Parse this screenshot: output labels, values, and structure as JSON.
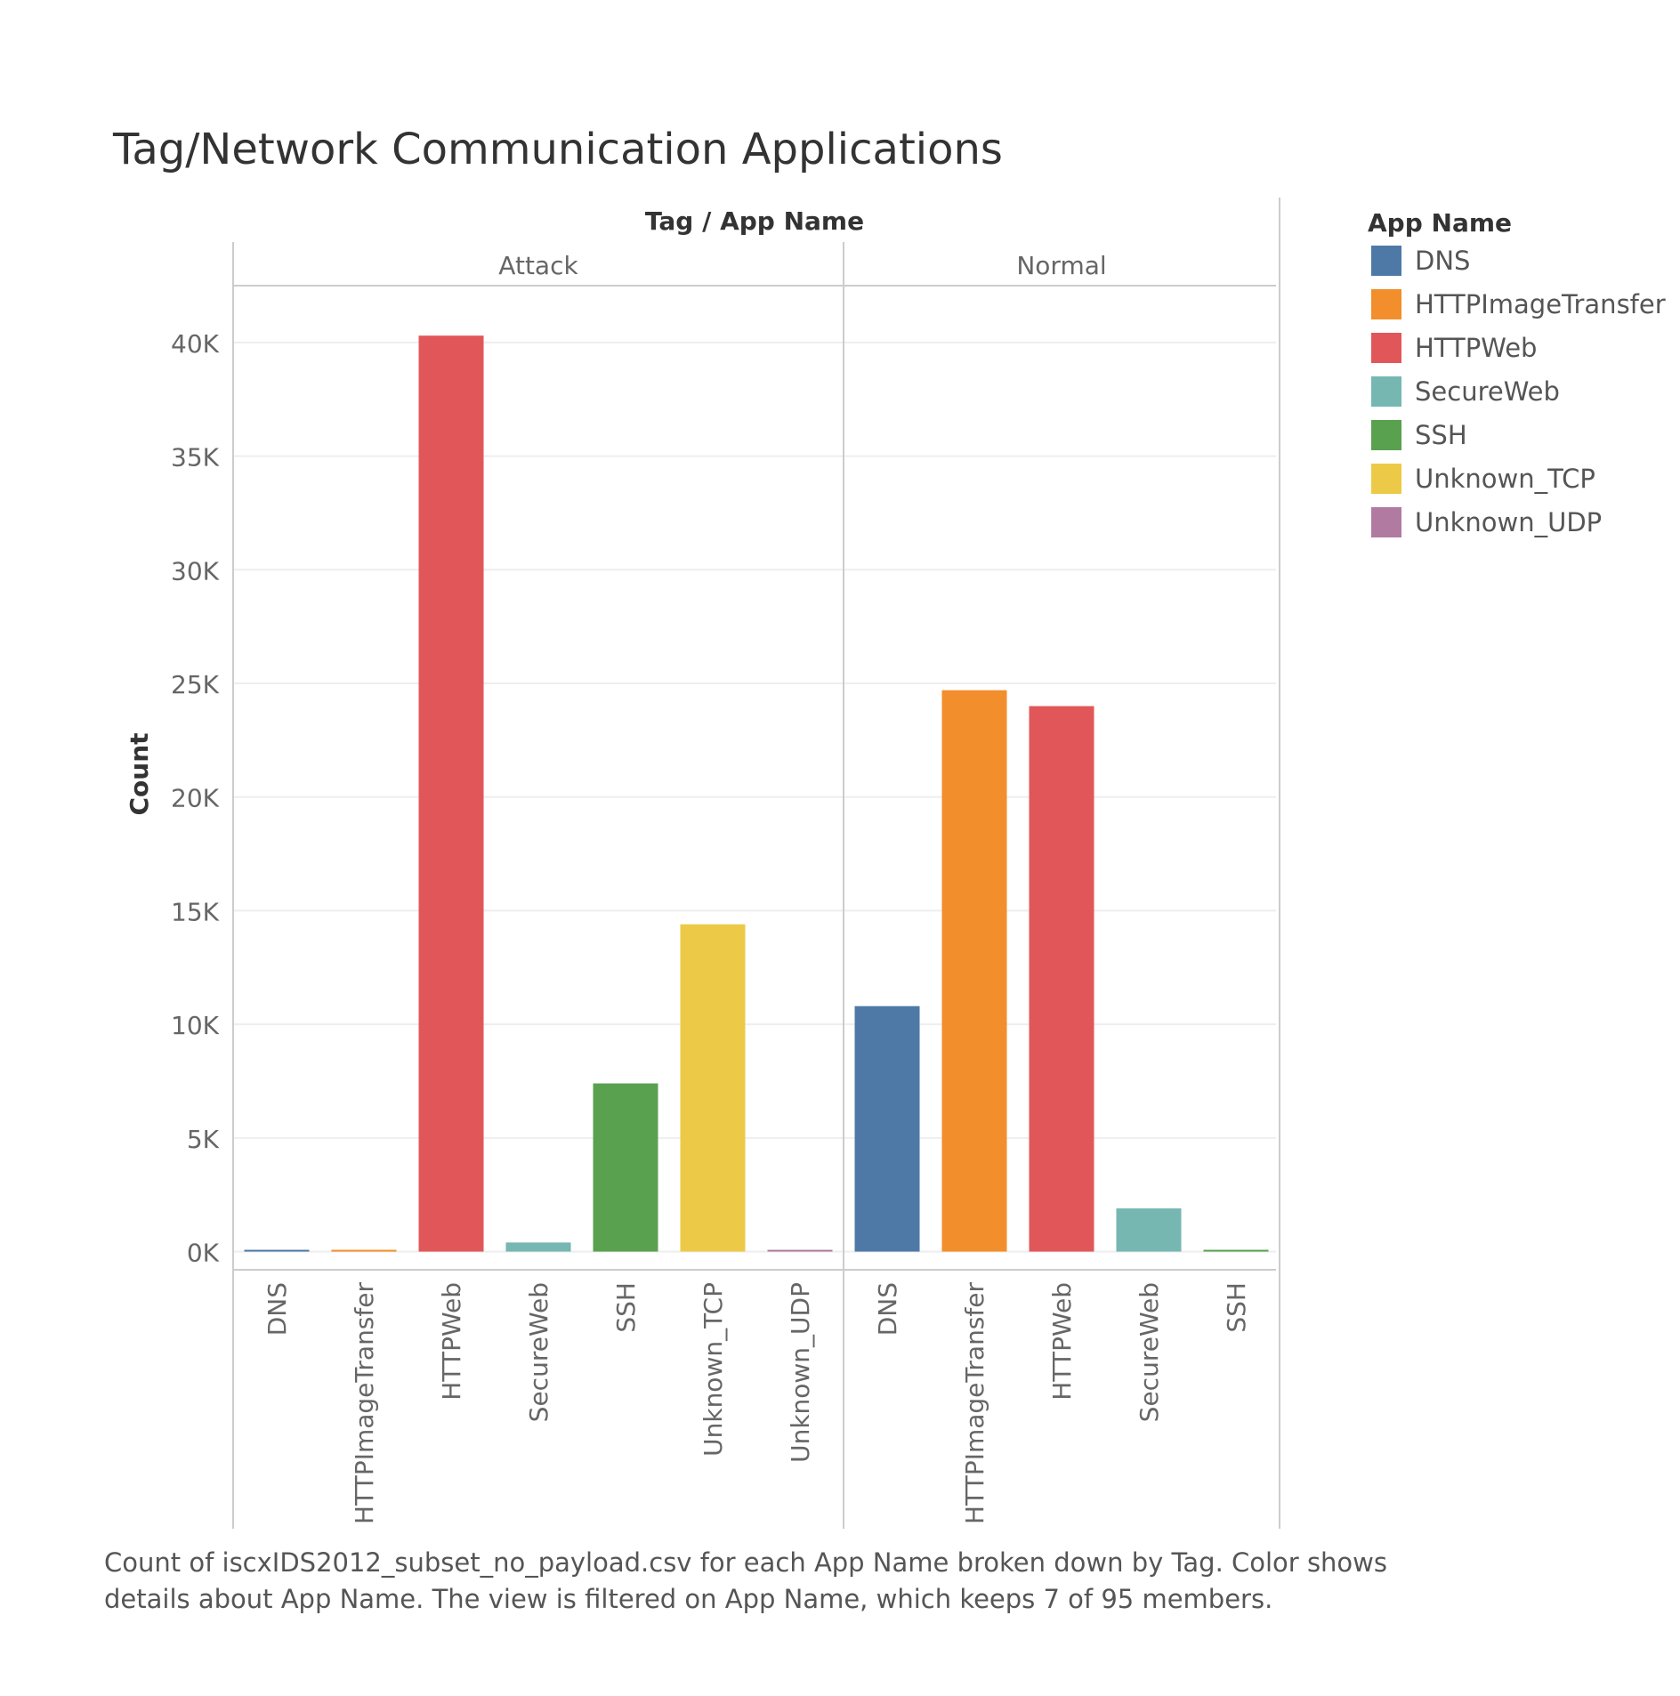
{
  "chart_data": {
    "type": "bar",
    "title": "Tag/Network Communication Applications",
    "column_header": "Tag  /  App Name",
    "ylabel": "Count",
    "ylim": [
      -800,
      42500
    ],
    "y_ticks": [
      0,
      5000,
      10000,
      15000,
      20000,
      25000,
      30000,
      35000,
      40000
    ],
    "y_tick_labels": [
      "0K",
      "5K",
      "10K",
      "15K",
      "20K",
      "25K",
      "30K",
      "35K",
      "40K"
    ],
    "grid": true,
    "legend": {
      "title": "App Name",
      "placement": "right",
      "items": [
        {
          "name": "DNS",
          "color": "#4e79a7"
        },
        {
          "name": "HTTPImageTransfer",
          "color": "#f28e2b"
        },
        {
          "name": "HTTPWeb",
          "color": "#e15759"
        },
        {
          "name": "SecureWeb",
          "color": "#76b7b2"
        },
        {
          "name": "SSH",
          "color": "#59a14f"
        },
        {
          "name": "Unknown_TCP",
          "color": "#edc948"
        },
        {
          "name": "Unknown_UDP",
          "color": "#b07aa1"
        }
      ]
    },
    "panels": [
      {
        "tag": "Attack",
        "categories": [
          "DNS",
          "HTTPImageTransfer",
          "HTTPWeb",
          "SecureWeb",
          "SSH",
          "Unknown_TCP",
          "Unknown_UDP"
        ],
        "values": [
          60,
          40,
          40300,
          400,
          7400,
          14400,
          5
        ]
      },
      {
        "tag": "Normal",
        "categories": [
          "DNS",
          "HTTPImageTransfer",
          "HTTPWeb",
          "SecureWeb",
          "SSH"
        ],
        "values": [
          10800,
          24700,
          24000,
          1900,
          50
        ]
      }
    ]
  },
  "caption": {
    "line1": "Count of iscxIDS2012_subset_no_payload.csv for each App Name broken down by Tag.  Color shows",
    "line2": "details about App Name. The view is filtered on App Name, which keeps 7 of 95 members."
  }
}
